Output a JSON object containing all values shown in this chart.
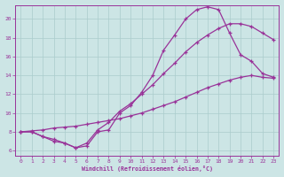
{
  "bg_color": "#cce5e5",
  "grid_color": "#aacccc",
  "line_color": "#993399",
  "xlabel": "Windchill (Refroidissement éolien,°C)",
  "xlim": [
    -0.5,
    23.5
  ],
  "ylim": [
    5.5,
    21.5
  ],
  "xticks": [
    0,
    1,
    2,
    3,
    4,
    5,
    6,
    7,
    8,
    9,
    10,
    11,
    12,
    13,
    14,
    15,
    16,
    17,
    18,
    19,
    20,
    21,
    22,
    23
  ],
  "yticks": [
    6,
    8,
    10,
    12,
    14,
    16,
    18,
    20
  ],
  "line1_x": [
    0,
    1,
    2,
    3,
    4,
    5,
    6,
    7,
    8,
    9,
    10,
    11,
    12,
    13,
    14,
    15,
    16,
    17,
    18,
    19,
    20,
    21,
    22,
    23
  ],
  "line1_y": [
    8.0,
    8.0,
    7.5,
    7.0,
    6.8,
    6.3,
    6.5,
    8.0,
    8.2,
    10.0,
    10.8,
    12.2,
    14.0,
    16.7,
    18.3,
    20.0,
    21.0,
    21.3,
    21.0,
    18.5,
    16.2,
    15.5,
    14.2,
    13.8
  ],
  "line2_x": [
    0,
    1,
    2,
    3,
    4,
    5,
    6,
    7,
    8,
    9,
    10,
    11,
    12,
    13,
    14,
    15,
    16,
    17,
    18,
    19,
    20,
    21,
    22,
    23
  ],
  "line2_y": [
    8.0,
    8.1,
    8.2,
    8.4,
    8.5,
    8.6,
    8.8,
    9.0,
    9.2,
    9.4,
    9.7,
    10.0,
    10.4,
    10.8,
    11.2,
    11.7,
    12.2,
    12.7,
    13.1,
    13.5,
    13.8,
    14.0,
    13.8,
    13.7
  ],
  "line3_x": [
    0,
    1,
    2,
    3,
    4,
    5,
    6,
    7,
    8,
    9,
    10,
    11,
    12,
    13,
    14,
    15,
    16,
    17,
    18,
    19,
    20,
    21,
    22,
    23
  ],
  "line3_y": [
    8.0,
    8.0,
    7.5,
    7.2,
    6.8,
    6.3,
    6.8,
    8.2,
    9.0,
    10.2,
    11.0,
    12.0,
    13.0,
    14.2,
    15.3,
    16.5,
    17.5,
    18.3,
    19.0,
    19.5,
    19.5,
    19.2,
    18.5,
    17.8
  ]
}
